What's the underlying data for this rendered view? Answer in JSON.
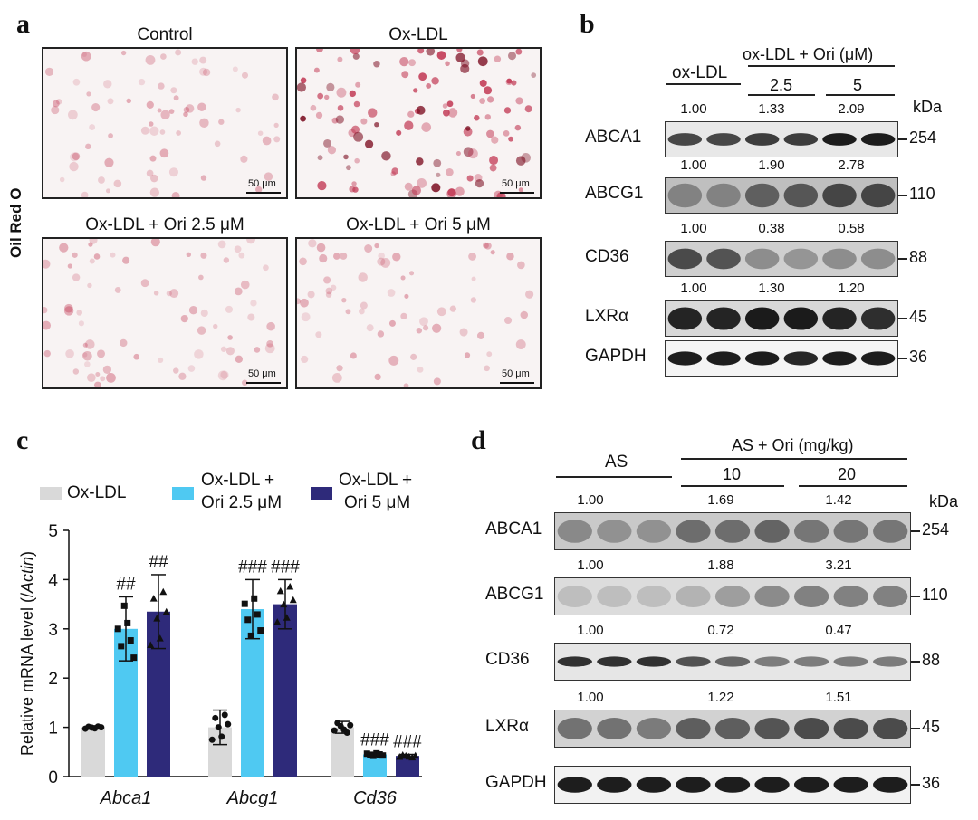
{
  "panels": {
    "a": {
      "letter": "a",
      "ylabel": "Oil Red O",
      "images": [
        {
          "title": "Control",
          "scale": "50 μm"
        },
        {
          "title": "Ox-LDL",
          "scale": "50 μm"
        },
        {
          "title": "Ox-LDL + Ori 2.5 μM",
          "scale": "50 μm"
        },
        {
          "title": "Ox-LDL + Ori 5 μM",
          "scale": "50 μm"
        }
      ]
    },
    "b": {
      "letter": "b",
      "group1": "ox-LDL",
      "group2": "ox-LDL + Ori (μM)",
      "dose1": "2.5",
      "dose2": "5",
      "kda": "kDa",
      "rows": [
        {
          "name": "ABCA1",
          "vals": [
            "1.00",
            "1.33",
            "2.09"
          ],
          "mw": "254"
        },
        {
          "name": "ABCG1",
          "vals": [
            "1.00",
            "1.90",
            "2.78"
          ],
          "mw": "110"
        },
        {
          "name": "CD36",
          "vals": [
            "1.00",
            "0.38",
            "0.58"
          ],
          "mw": "88"
        },
        {
          "name": "LXRα",
          "vals": [
            "1.00",
            "1.30",
            "1.20"
          ],
          "mw": "45"
        },
        {
          "name": "GAPDH",
          "vals": [],
          "mw": "36"
        }
      ]
    },
    "c": {
      "letter": "c",
      "legend": [
        "Ox-LDL",
        "Ox-LDL +\nOri 2.5 μM",
        "Ox-LDL +\nOri 5 μM"
      ],
      "legend_line1": [
        "Ox-LDL",
        "Ox-LDL +",
        "Ox-LDL +"
      ],
      "legend_line2": [
        "",
        "Ori 2.5 μM",
        "Ori 5 μM"
      ]
    },
    "d": {
      "letter": "d",
      "group1": "AS",
      "group2": "AS + Ori (mg/kg)",
      "dose1": "10",
      "dose2": "20",
      "kda": "kDa",
      "rows": [
        {
          "name": "ABCA1",
          "vals": [
            "1.00",
            "1.69",
            "1.42"
          ],
          "mw": "254"
        },
        {
          "name": "ABCG1",
          "vals": [
            "1.00",
            "1.88",
            "3.21"
          ],
          "mw": "110"
        },
        {
          "name": "CD36",
          "vals": [
            "1.00",
            "0.72",
            "0.47"
          ],
          "mw": "88"
        },
        {
          "name": "LXRα",
          "vals": [
            "1.00",
            "1.22",
            "1.51"
          ],
          "mw": "45"
        },
        {
          "name": "GAPDH",
          "vals": [],
          "mw": "36"
        }
      ]
    }
  },
  "chart_data": {
    "type": "bar",
    "categories": [
      "Abca1",
      "Abcg1",
      "Cd36"
    ],
    "ylabel": "Relative mRNA level (/Actin)",
    "ylim": [
      0,
      5
    ],
    "yticks": [
      "0",
      "1",
      "2",
      "3",
      "4",
      "5"
    ],
    "series": [
      {
        "name": "Ox-LDL",
        "color": "#d9d9d9",
        "values": [
          1.0,
          1.0,
          1.0
        ],
        "errors": [
          0.03,
          0.35,
          0.12
        ],
        "annotations": [
          "",
          "",
          ""
        ]
      },
      {
        "name": "Ox-LDL + Ori 2.5 μM",
        "color": "#4fc9f2",
        "values": [
          3.0,
          3.4,
          0.45
        ],
        "errors": [
          0.65,
          0.6,
          0.04
        ],
        "annotations": [
          "##",
          "###",
          "###"
        ]
      },
      {
        "name": "Ox-LDL + Ori 5 μM",
        "color": "#2e2a7a",
        "values": [
          3.35,
          3.5,
          0.42
        ],
        "errors": [
          0.75,
          0.5,
          0.03
        ],
        "annotations": [
          "##",
          "###",
          "###"
        ]
      }
    ],
    "legend_position": "top"
  }
}
